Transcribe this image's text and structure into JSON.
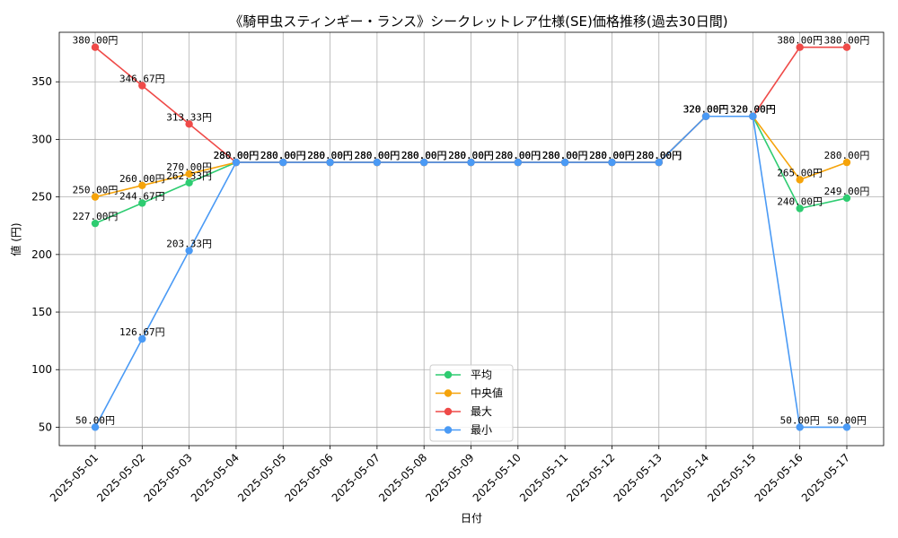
{
  "chart_data": {
    "type": "line",
    "title": "《騎甲虫スティンギー・ランス》シークレットレア仕様(SE)価格推移(過去30日間)",
    "xlabel": "日付",
    "ylabel": "値 (円)",
    "ylim": [
      34,
      393
    ],
    "yticks": [
      50,
      100,
      150,
      200,
      250,
      300,
      350
    ],
    "grid": true,
    "legend_position": "bottom-center",
    "label_suffix": "円",
    "categories": [
      "2025-05-01",
      "2025-05-02",
      "2025-05-03",
      "2025-05-04",
      "2025-05-05",
      "2025-05-06",
      "2025-05-07",
      "2025-05-08",
      "2025-05-09",
      "2025-05-10",
      "2025-05-11",
      "2025-05-12",
      "2025-05-13",
      "2025-05-14",
      "2025-05-15",
      "2025-05-16",
      "2025-05-17"
    ],
    "series": [
      {
        "name": "平均",
        "color": "#2ecc71",
        "values": [
          227.0,
          244.67,
          262.33,
          280.0,
          280.0,
          280.0,
          280.0,
          280.0,
          280.0,
          280.0,
          280.0,
          280.0,
          280.0,
          320.0,
          320.0,
          240.0,
          249.0
        ]
      },
      {
        "name": "中央値",
        "color": "#f5a30a",
        "values": [
          250.0,
          260.0,
          270.0,
          280.0,
          280.0,
          280.0,
          280.0,
          280.0,
          280.0,
          280.0,
          280.0,
          280.0,
          280.0,
          320.0,
          320.0,
          265.0,
          280.0
        ]
      },
      {
        "name": "最大",
        "color": "#ef4a48",
        "values": [
          380.0,
          346.67,
          313.33,
          280.0,
          280.0,
          280.0,
          280.0,
          280.0,
          280.0,
          280.0,
          280.0,
          280.0,
          280.0,
          320.0,
          320.0,
          380.0,
          380.0
        ]
      },
      {
        "name": "最小",
        "color": "#4a9af5",
        "values": [
          50.0,
          126.67,
          203.33,
          280.0,
          280.0,
          280.0,
          280.0,
          280.0,
          280.0,
          280.0,
          280.0,
          280.0,
          280.0,
          320.0,
          320.0,
          50.0,
          50.0
        ]
      }
    ]
  }
}
